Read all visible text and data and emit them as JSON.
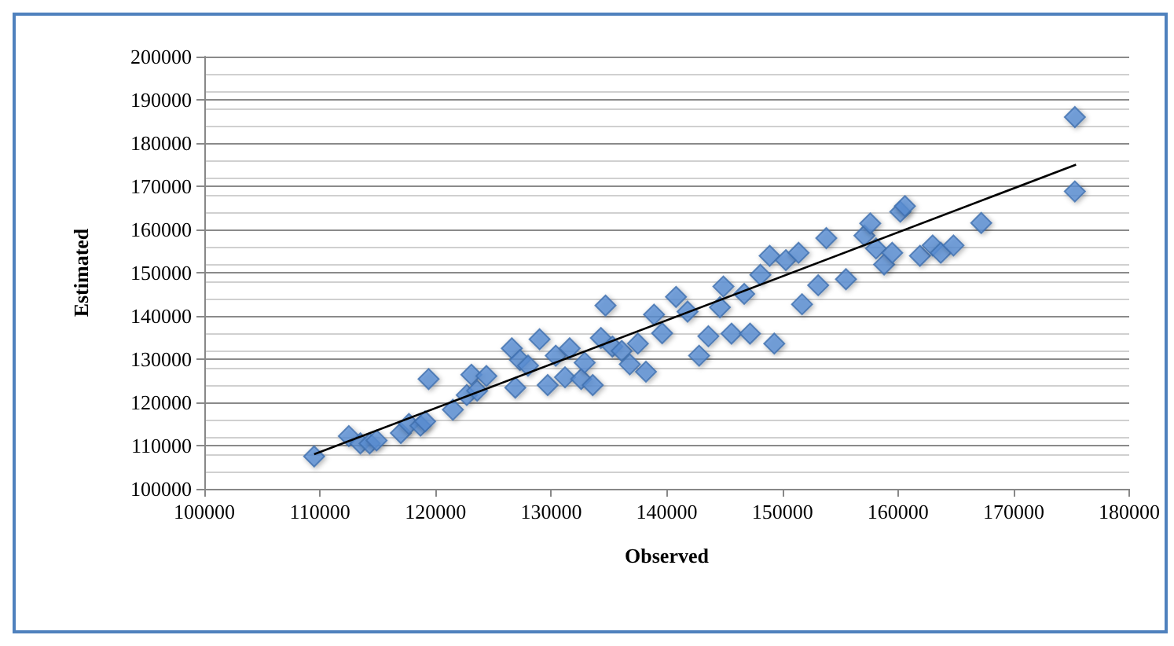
{
  "chart_data": {
    "type": "scatter",
    "xlabel": "Observed",
    "ylabel": "Estimated",
    "xlim": [
      100000,
      180000
    ],
    "xticks": [
      100000,
      110000,
      120000,
      130000,
      140000,
      150000,
      160000,
      170000,
      180000
    ],
    "ylim": [
      100000,
      200000
    ],
    "yticks": [
      100000,
      110000,
      120000,
      130000,
      140000,
      150000,
      160000,
      170000,
      180000,
      190000,
      200000
    ],
    "grid": "y",
    "marker": "diamond",
    "series": [
      {
        "color": "#5b8fd4",
        "x": [
          109500,
          112500,
          113500,
          114300,
          114900,
          117000,
          117700,
          118700,
          119100,
          119400,
          121500,
          122700,
          123100,
          123600,
          124400,
          126600,
          126900,
          127300,
          128000,
          129000,
          129700,
          130400,
          131200,
          131600,
          132600,
          132900,
          133600,
          134300,
          134700,
          135300,
          136100,
          136800,
          137500,
          138200,
          138900,
          139600,
          140800,
          141800,
          142800,
          143600,
          144600,
          144900,
          145600,
          146700,
          147200,
          148100,
          148900,
          149300,
          150300,
          151400,
          151700,
          153100,
          153800,
          155500,
          157100,
          157600,
          158100,
          158800,
          159500,
          160200,
          160600,
          161900,
          163000,
          163700,
          164800,
          167200,
          175300,
          175300
        ],
        "values": [
          107500,
          112200,
          110500,
          110500,
          111200,
          112900,
          115000,
          114600,
          115600,
          125400,
          118300,
          121700,
          126400,
          122700,
          126100,
          132500,
          123400,
          129800,
          128500,
          134600,
          124000,
          130800,
          125800,
          132500,
          125400,
          129200,
          124000,
          134900,
          142400,
          132900,
          131900,
          128800,
          133600,
          127100,
          140300,
          136000,
          144400,
          141000,
          130800,
          135300,
          142000,
          146800,
          135900,
          145100,
          135900,
          149500,
          153900,
          133600,
          152900,
          154600,
          142700,
          147100,
          158000,
          148500,
          158600,
          161400,
          155600,
          151900,
          154600,
          164100,
          165400,
          153900,
          156300,
          154600,
          156300,
          161500,
          186000,
          168800
        ]
      },
      {
        "type": "line",
        "color": "#000000",
        "marker": "none",
        "x": [
          109500,
          175400
        ],
        "values": [
          108000,
          175000
        ]
      }
    ]
  }
}
